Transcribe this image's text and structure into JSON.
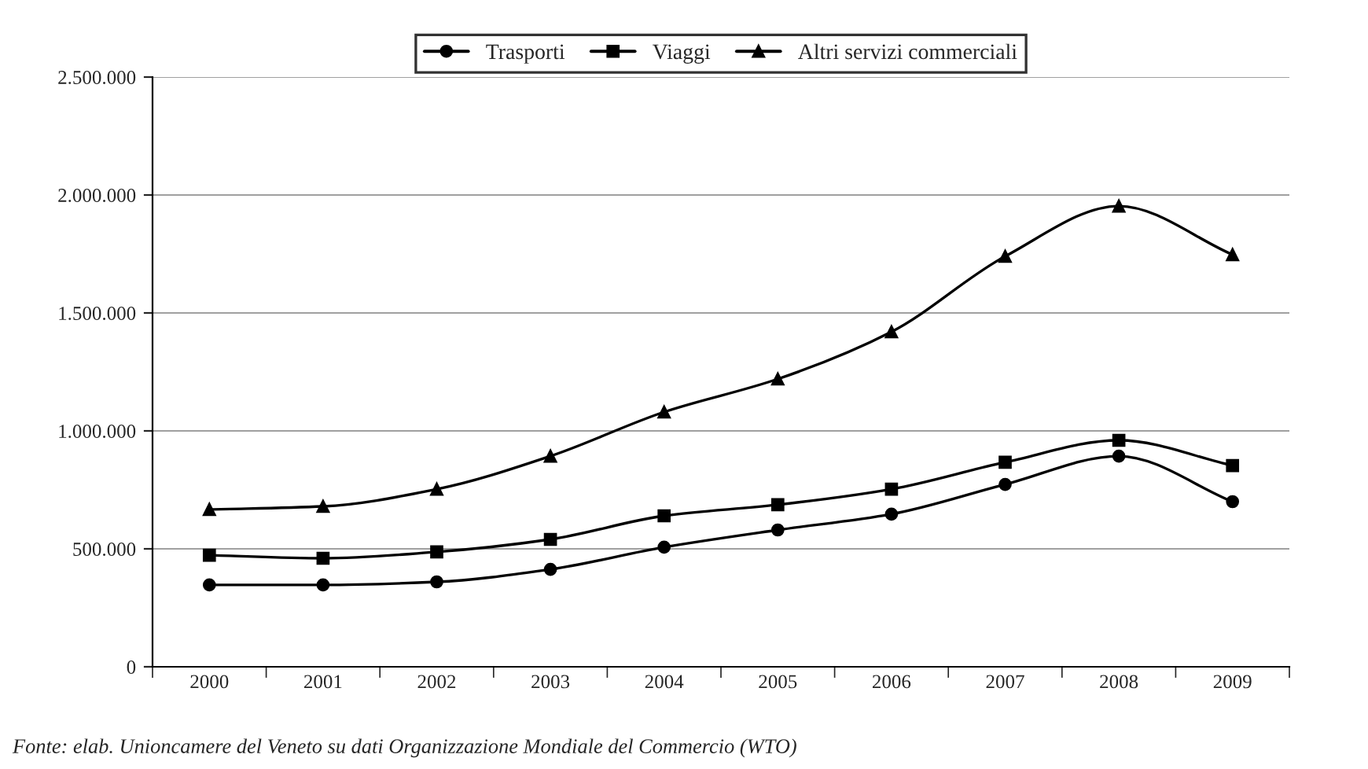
{
  "chart_data": {
    "type": "line",
    "categories": [
      "2000",
      "2001",
      "2002",
      "2003",
      "2004",
      "2005",
      "2006",
      "2007",
      "2008",
      "2009"
    ],
    "series": [
      {
        "name": "Trasporti",
        "color": "#000000",
        "marker": "circle",
        "values": [
          347000,
          347000,
          360000,
          413000,
          507000,
          580000,
          647000,
          773000,
          893000,
          700000
        ]
      },
      {
        "name": "Viaggi",
        "color": "#000000",
        "marker": "square",
        "values": [
          473000,
          460000,
          487000,
          540000,
          640000,
          687000,
          753000,
          867000,
          960000,
          853000
        ]
      },
      {
        "name": "Altri servizi commerciali",
        "color": "#000000",
        "marker": "triangle",
        "values": [
          667000,
          680000,
          753000,
          893000,
          1080000,
          1220000,
          1420000,
          1740000,
          1953000,
          1747000
        ]
      }
    ],
    "ylim": [
      0,
      2500000
    ],
    "yticks": [
      0,
      {
        "value": 500000,
        "label": "500.000"
      },
      {
        "value": 1000000,
        "label": "1.000.000"
      },
      {
        "value": 1500000,
        "label": "1.500.000"
      },
      {
        "value": 2000000,
        "label": "2.000.000"
      },
      {
        "value": 2500000,
        "label": "2.500.000"
      }
    ],
    "grid": "y",
    "legend": "top",
    "line_style": "solid",
    "annotations": [
      "Fonte: elab. Unioncamere del Veneto su dati Organizzazione Mondiale del Commercio (WTO)"
    ]
  }
}
